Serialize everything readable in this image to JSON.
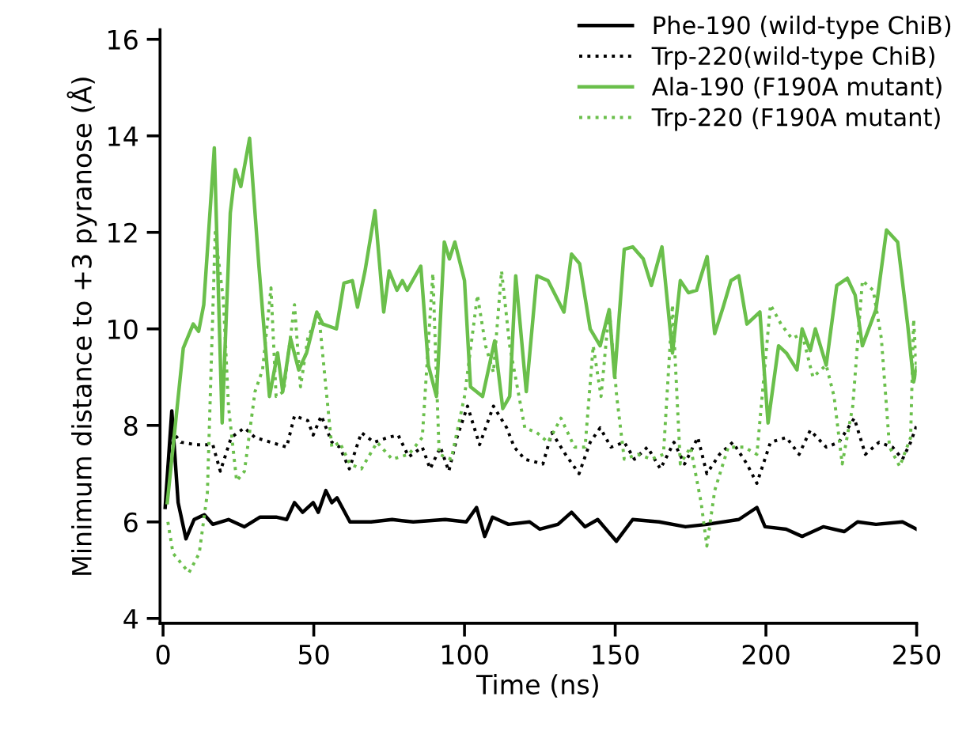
{
  "chart_data": {
    "type": "line",
    "xlabel": "Time (ns)",
    "ylabel": "Minimum distance to +3 pyranose (Å)",
    "xlim": [
      -1,
      250
    ],
    "ylim": [
      3.9,
      16.2
    ],
    "xticks": [
      0,
      50,
      100,
      150,
      200,
      250
    ],
    "yticks": [
      4,
      6,
      8,
      10,
      12,
      14,
      16
    ],
    "grid": false,
    "legend": "top right",
    "series": [
      {
        "name": "Phe-190 (wild-type ChiB)",
        "color": "#000000",
        "line_style": "solid",
        "x": [
          0.7,
          2.9,
          5,
          7.6,
          10.3,
          13.7,
          16.5,
          21.7,
          27,
          32.2,
          37.5,
          41,
          43.6,
          46.3,
          49.8,
          51.5,
          54,
          56,
          57.7,
          62,
          69,
          76,
          83,
          93.6,
          100.6,
          104,
          106.7,
          109.3,
          114.6,
          121.6,
          125,
          131,
          135.5,
          140,
          144.2,
          150.4,
          155.8,
          164.6,
          173.3,
          180.4,
          191,
          197,
          199.7,
          206.7,
          212,
          219,
          226,
          230.4,
          236.5,
          245.3,
          250
        ],
        "values": [
          6.3,
          8.3,
          6.4,
          5.65,
          6.05,
          6.15,
          5.95,
          6.05,
          5.9,
          6.1,
          6.1,
          6.05,
          6.4,
          6.2,
          6.4,
          6.2,
          6.65,
          6.4,
          6.5,
          6.0,
          6.0,
          6.05,
          6.0,
          6.05,
          6.0,
          6.3,
          5.7,
          6.1,
          5.95,
          6.0,
          5.85,
          5.95,
          6.2,
          5.9,
          6.05,
          5.6,
          6.05,
          6.0,
          5.9,
          5.95,
          6.05,
          6.3,
          5.9,
          5.85,
          5.7,
          5.9,
          5.8,
          6.0,
          5.95,
          6.0,
          5.85
        ]
      },
      {
        "name": "Trp-220(wild-type ChiB)",
        "color": "#000000",
        "line_style": "dotted",
        "x": [
          1.6,
          3.3,
          6,
          11,
          16.5,
          19,
          22.6,
          27,
          30.5,
          35.8,
          41,
          43.6,
          48,
          49.8,
          52.5,
          56,
          58.6,
          61.8,
          65.8,
          70,
          74.6,
          78,
          81.5,
          86,
          88.6,
          92,
          94.8,
          97.5,
          101,
          105,
          109.6,
          114,
          116.5,
          120,
          126,
          129,
          133.5,
          138,
          141.7,
          145,
          148.6,
          153,
          156.4,
          160.7,
          165,
          169.5,
          173,
          177.4,
          180.4,
          184.6,
          189,
          193.7,
          197,
          201.5,
          206.8,
          211,
          214.7,
          220,
          224.2,
          229.3,
          233,
          237.5,
          242,
          245.3,
          248,
          250
        ],
        "values": [
          7.1,
          7.85,
          7.65,
          7.6,
          7.6,
          7.05,
          7.75,
          7.95,
          7.75,
          7.65,
          7.55,
          8.2,
          8.1,
          7.8,
          8.2,
          7.65,
          7.55,
          7.1,
          7.85,
          7.65,
          7.75,
          7.8,
          7.35,
          7.55,
          7.1,
          7.55,
          7.05,
          7.75,
          8.4,
          7.6,
          8.4,
          7.95,
          7.55,
          7.3,
          7.2,
          7.85,
          7.4,
          7.0,
          7.65,
          7.95,
          7.55,
          7.65,
          7.3,
          7.55,
          7.1,
          7.65,
          7.2,
          7.75,
          7.0,
          7.4,
          7.65,
          7.2,
          6.8,
          7.65,
          7.75,
          7.4,
          7.9,
          7.55,
          7.65,
          8.15,
          7.4,
          7.65,
          7.55,
          7.3,
          7.65,
          8.0
        ]
      },
      {
        "name": "Ala-190 (F190A mutant)",
        "color": "#6abf4b",
        "line_style": "solid",
        "x": [
          1.4,
          6.7,
          10,
          11.8,
          13.5,
          17,
          19.6,
          22.3,
          24,
          25.8,
          28.7,
          31.8,
          35.3,
          38,
          39.7,
          42.3,
          45,
          47.6,
          51,
          53,
          57.5,
          60,
          62.8,
          64.5,
          67,
          70.3,
          73.2,
          75,
          77.6,
          79.4,
          81,
          85.5,
          88,
          90.7,
          93.3,
          95,
          96.8,
          100,
          102,
          106,
          110,
          112.7,
          115,
          117,
          120.5,
          124,
          127.7,
          133,
          135.5,
          138.2,
          141.7,
          145,
          148,
          149.8,
          153,
          155.8,
          159.3,
          162,
          165.5,
          169,
          171.6,
          174.3,
          177,
          180.5,
          183,
          185.8,
          188.4,
          191,
          193.7,
          198,
          200.7,
          204.2,
          206.8,
          210.3,
          212,
          214.7,
          216.4,
          220,
          223.5,
          227,
          229.6,
          232,
          236.5,
          240,
          243.7,
          247,
          249,
          250
        ],
        "values": [
          6.4,
          9.6,
          10.1,
          9.95,
          10.5,
          13.75,
          8.05,
          12.4,
          13.3,
          12.95,
          13.95,
          11.3,
          8.6,
          9.5,
          8.7,
          9.8,
          9.15,
          9.5,
          10.35,
          10.1,
          10.0,
          10.95,
          11.0,
          10.45,
          11.2,
          12.45,
          10.35,
          11.2,
          10.8,
          11.0,
          10.8,
          11.3,
          9.25,
          8.6,
          11.8,
          11.45,
          11.8,
          11.0,
          8.8,
          8.6,
          9.75,
          8.35,
          8.6,
          11.1,
          8.7,
          11.1,
          11.0,
          10.35,
          11.55,
          11.35,
          10.0,
          9.65,
          10.4,
          9.0,
          11.65,
          11.7,
          11.45,
          10.9,
          11.7,
          9.5,
          11.0,
          10.75,
          10.8,
          11.5,
          9.9,
          10.45,
          11.0,
          11.1,
          10.1,
          10.35,
          8.05,
          9.65,
          9.5,
          9.15,
          10.0,
          9.55,
          10.0,
          9.25,
          10.9,
          11.05,
          10.7,
          9.65,
          10.4,
          12.05,
          11.8,
          10.1,
          8.9,
          9.2
        ]
      },
      {
        "name": "Trp-220 (F190A mutant)",
        "color": "#6abf4b",
        "line_style": "dotted",
        "x": [
          1.6,
          3.3,
          8.6,
          12,
          14.7,
          17.3,
          20,
          21.7,
          24.4,
          27,
          30.5,
          33,
          35.8,
          37.5,
          40,
          43.6,
          45.6,
          48,
          51.6,
          54,
          56,
          58.6,
          62,
          65.8,
          71,
          76,
          81.5,
          86,
          89.5,
          91.6,
          95.6,
          100,
          104.3,
          107,
          109.6,
          112.3,
          115,
          120,
          124,
          127.7,
          132,
          136.5,
          140,
          142.7,
          145.3,
          148,
          150.5,
          153,
          157.5,
          162,
          166,
          169,
          171.6,
          175,
          178.5,
          180.4,
          183,
          187.5,
          192.8,
          197,
          201.5,
          205,
          208.6,
          212,
          215.6,
          220,
          222.6,
          225.3,
          228.8,
          232,
          235.6,
          238.3,
          241,
          244.4,
          248,
          249,
          250
        ],
        "values": [
          6.0,
          5.35,
          4.95,
          5.35,
          6.6,
          12.0,
          10.6,
          8.4,
          6.85,
          7.05,
          8.7,
          9.15,
          10.85,
          8.6,
          8.7,
          10.5,
          8.8,
          9.8,
          10.35,
          8.8,
          7.55,
          7.65,
          7.2,
          7.1,
          7.65,
          7.3,
          7.4,
          7.75,
          11.15,
          7.4,
          7.3,
          8.6,
          10.7,
          9.65,
          9.1,
          11.2,
          9.65,
          7.95,
          7.85,
          7.65,
          8.15,
          7.55,
          7.55,
          9.65,
          8.6,
          10.4,
          8.6,
          7.3,
          7.4,
          7.3,
          7.4,
          10.5,
          7.2,
          7.55,
          6.4,
          5.5,
          6.65,
          7.55,
          7.55,
          7.4,
          10.5,
          10.1,
          9.8,
          9.9,
          9.0,
          9.25,
          8.6,
          7.2,
          8.4,
          11.0,
          10.8,
          9.8,
          7.55,
          7.15,
          7.75,
          10.2,
          9.1
        ]
      }
    ]
  }
}
